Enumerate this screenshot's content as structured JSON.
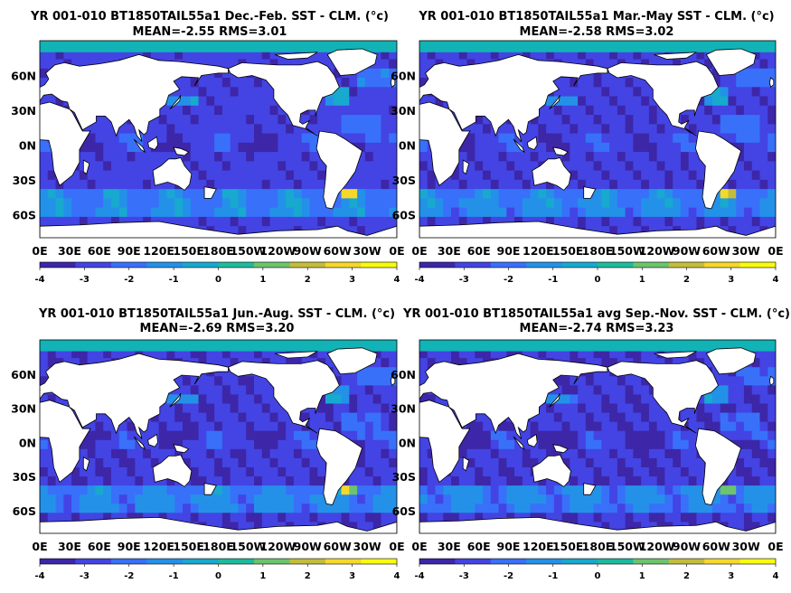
{
  "chart_data": [
    {
      "type": "heatmap",
      "title": "YR 001-010 BT1850TAIL55a1  Dec.-Feb. SST - CLM. (°c)",
      "subtitle": "MEAN=-2.55   RMS=3.01",
      "mean": -2.55,
      "rms": 3.01
    },
    {
      "type": "heatmap",
      "title": "YR 001-010 BT1850TAIL55a1 Mar.-May SST - CLM. (°c)",
      "subtitle": "MEAN=-2.58   RMS=3.02",
      "mean": -2.58,
      "rms": 3.02
    },
    {
      "type": "heatmap",
      "title": "YR 001-010 BT1850TAIL55a1 Jun.-Aug. SST - CLM. (°c)",
      "subtitle": "MEAN=-2.69   RMS=3.20",
      "mean": -2.69,
      "rms": 3.2
    },
    {
      "type": "heatmap",
      "title": "YR 001-010 BT1850TAIL55a1 avg Sep.-Nov. SST - CLM. (°c)",
      "subtitle": "MEAN=-2.74   RMS=3.23",
      "mean": -2.74,
      "rms": 3.23
    }
  ],
  "axes": {
    "xticks": [
      "0E",
      "30E",
      "60E",
      "90E",
      "120E",
      "150E",
      "180E",
      "150W",
      "120W",
      "90W",
      "60W",
      "30W",
      "0E"
    ],
    "yticks": [
      "60N",
      "30N",
      "0N",
      "30S",
      "60S"
    ],
    "ytick_values": [
      60,
      30,
      0,
      -30,
      -60
    ],
    "lon_range": [
      0,
      360
    ],
    "lat_range": [
      -80,
      90
    ]
  },
  "colorbar": {
    "ticks": [
      "-4",
      "-3",
      "-2",
      "-1",
      "0",
      "1",
      "2",
      "3",
      "4"
    ],
    "range": [
      -4,
      4
    ],
    "colors": [
      "#3d26a8",
      "#4344e3",
      "#3870fa",
      "#2491e8",
      "#18a9cf",
      "#1cbb9e",
      "#6cc46c",
      "#c4bd3b",
      "#f6d82a",
      "#f9fb0e"
    ]
  },
  "colors": {
    "land": "#ffffff",
    "coast": "#000000",
    "deep_ocean": "#3a3ec8",
    "polar_band": "#12b3b6"
  }
}
